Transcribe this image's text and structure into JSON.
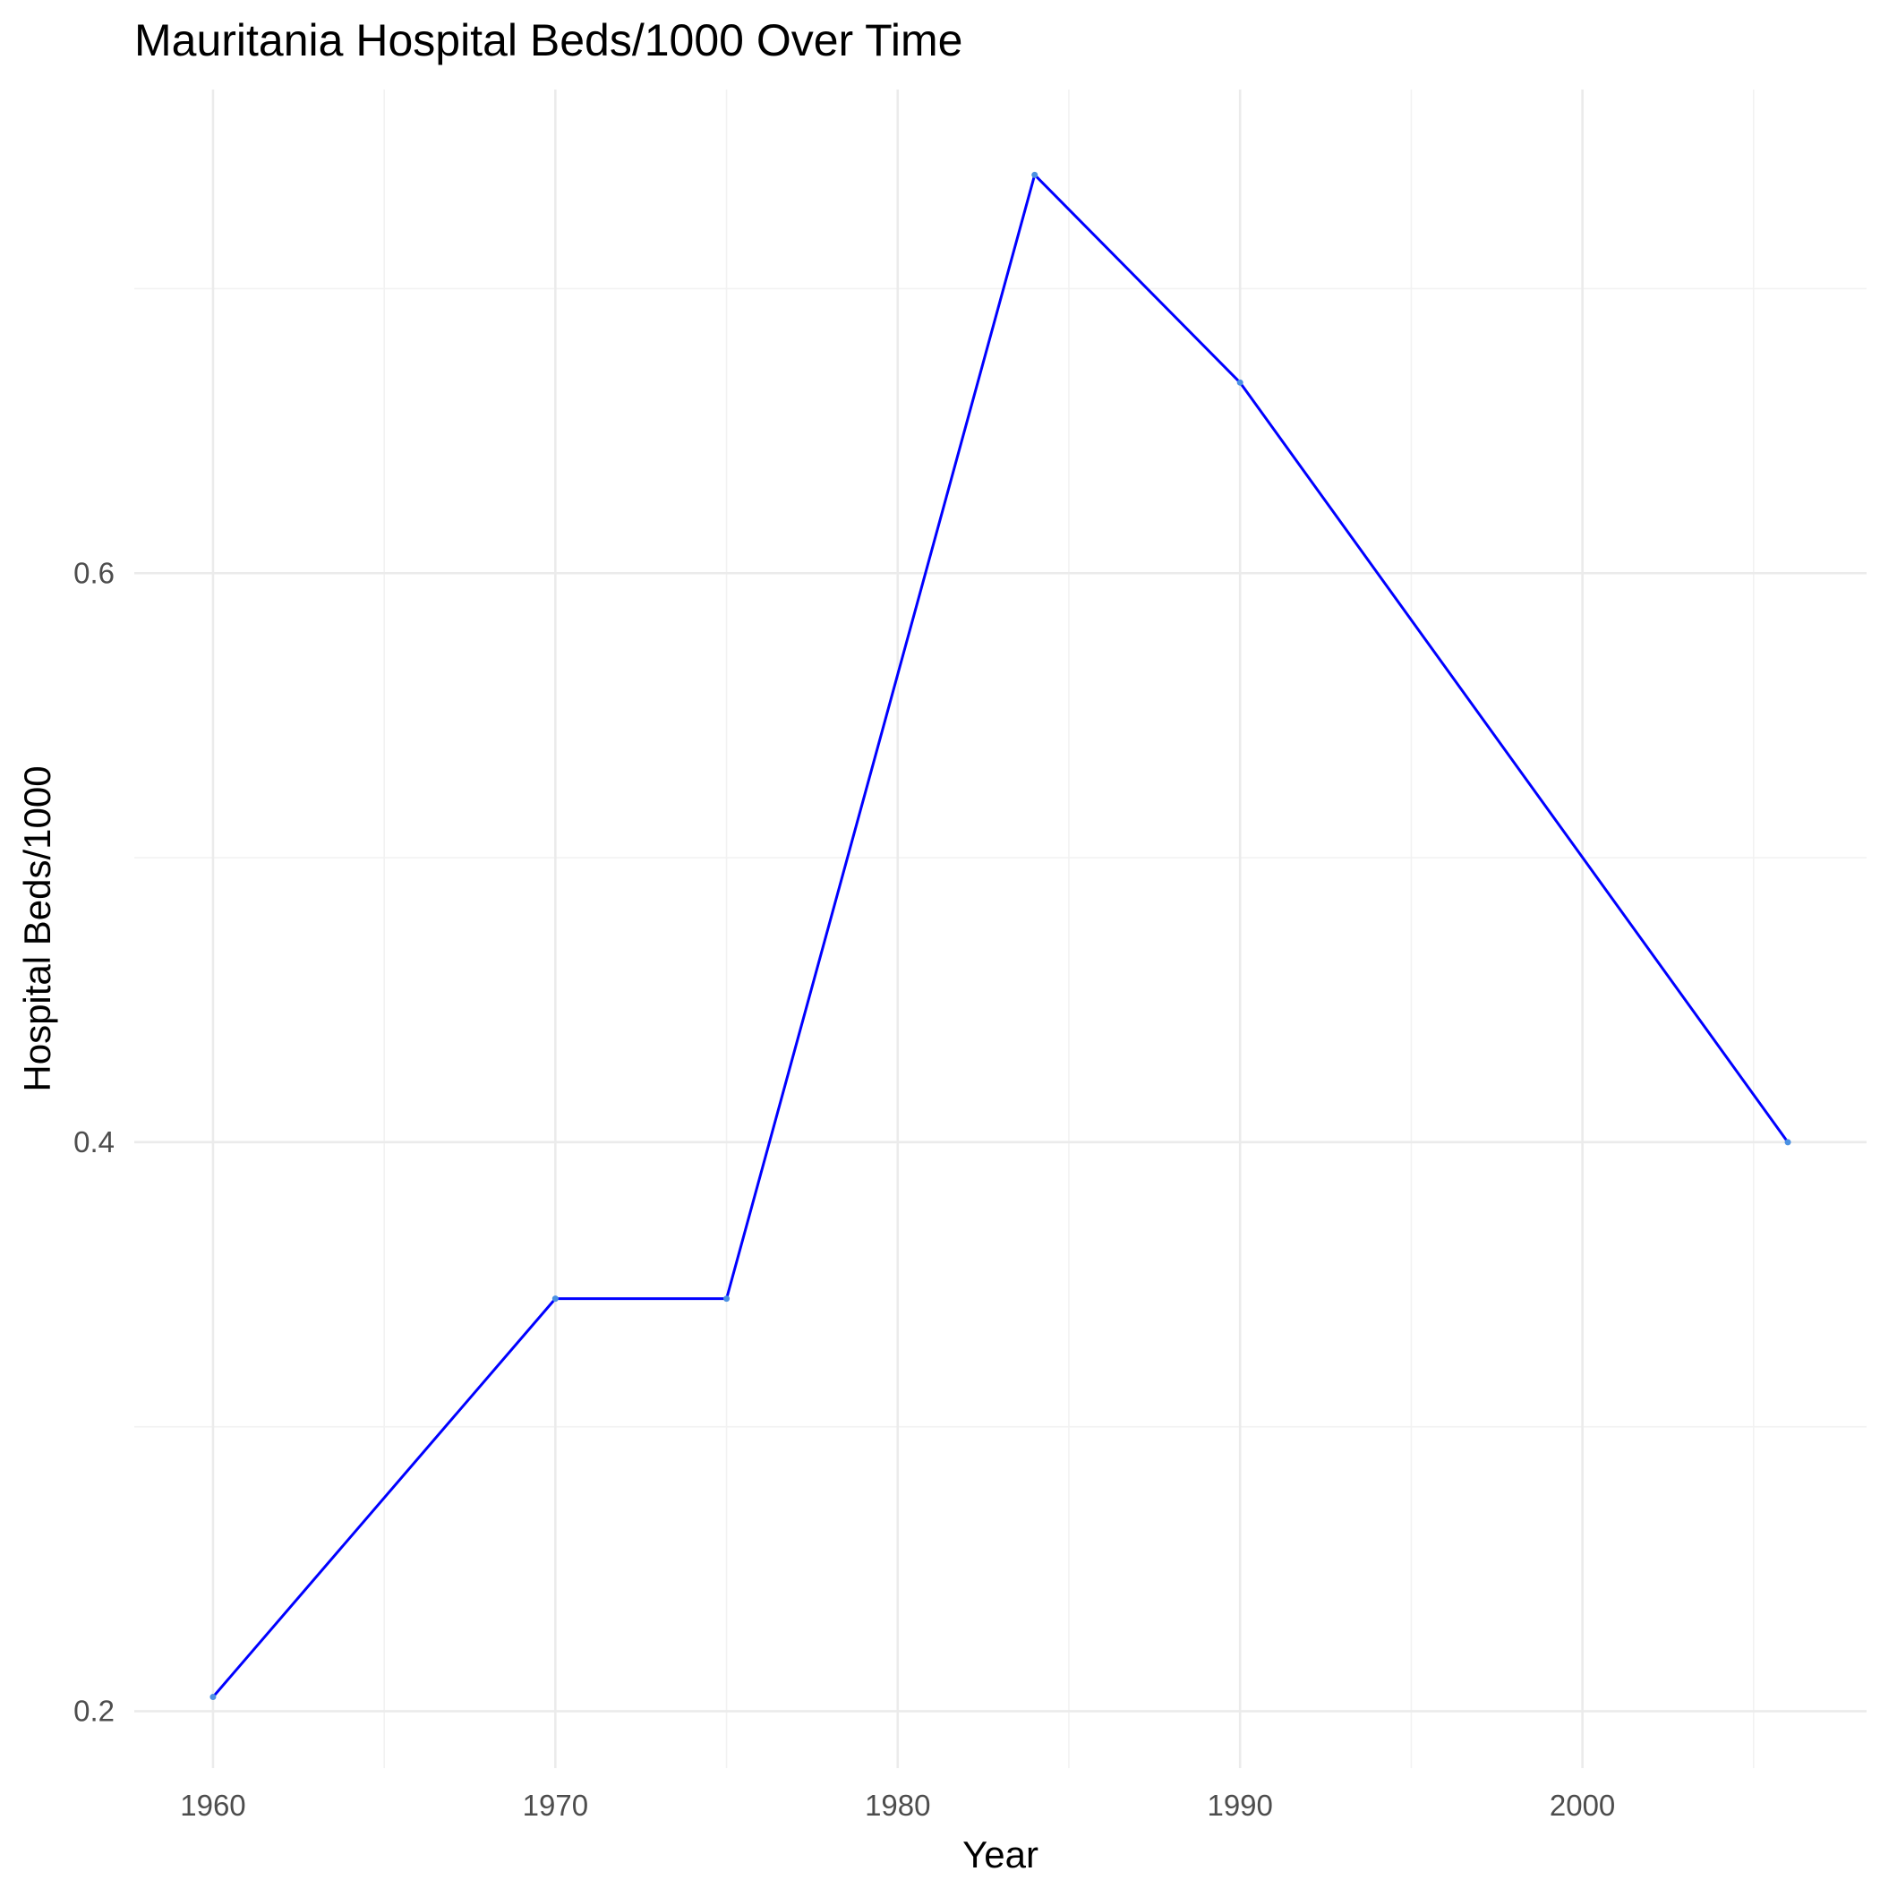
{
  "chart_data": {
    "type": "line",
    "title": "Mauritania Hospital Beds/1000 Over Time",
    "xlabel": "Year",
    "ylabel": "Hospital Beds/1000",
    "x": [
      1960,
      1970,
      1975,
      1984,
      1990,
      2006
    ],
    "series": [
      {
        "values": [
          0.205,
          0.345,
          0.345,
          0.74,
          0.667,
          0.4
        ],
        "color": "#0000ff"
      }
    ],
    "point_color": "#4a90e2",
    "xlim": [
      1957.7,
      2008.3
    ],
    "ylim": [
      0.18,
      0.77
    ],
    "x_ticks": [
      1960,
      1970,
      1980,
      1990,
      2000
    ],
    "x_tick_labels": [
      "1960",
      "1970",
      "1980",
      "1990",
      "2000"
    ],
    "y_ticks": [
      0.2,
      0.4,
      0.6
    ],
    "y_tick_labels": [
      "0.2",
      "0.4",
      "0.6"
    ],
    "grid": true,
    "legend": "none",
    "theme": "minimal"
  }
}
